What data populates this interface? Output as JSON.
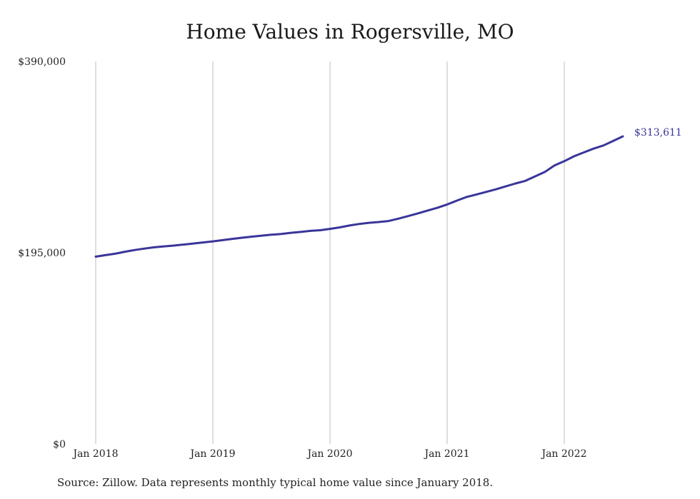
{
  "chart_data": {
    "type": "line",
    "title": "Home Values in Rogersville, MO",
    "xlabel": "",
    "ylabel": "",
    "x_ticks": [
      "Jan 2018",
      "Jan 2019",
      "Jan 2020",
      "Jan 2021",
      "Jan 2022"
    ],
    "y_ticks": [
      "$0",
      "$195,000",
      "$390,000"
    ],
    "y_tick_values": [
      0,
      195000,
      390000
    ],
    "ylim": [
      0,
      390000
    ],
    "grid": "vertical",
    "x": [
      "2018-01",
      "2018-02",
      "2018-03",
      "2018-04",
      "2018-05",
      "2018-06",
      "2018-07",
      "2018-08",
      "2018-09",
      "2018-10",
      "2018-11",
      "2018-12",
      "2019-01",
      "2019-02",
      "2019-03",
      "2019-04",
      "2019-05",
      "2019-06",
      "2019-07",
      "2019-08",
      "2019-09",
      "2019-10",
      "2019-11",
      "2019-12",
      "2020-01",
      "2020-02",
      "2020-03",
      "2020-04",
      "2020-05",
      "2020-06",
      "2020-07",
      "2020-08",
      "2020-09",
      "2020-10",
      "2020-11",
      "2020-12",
      "2021-01",
      "2021-02",
      "2021-03",
      "2021-04",
      "2021-05",
      "2021-06",
      "2021-07",
      "2021-08",
      "2021-09",
      "2021-10",
      "2021-11",
      "2021-12",
      "2022-01",
      "2022-02",
      "2022-03",
      "2022-04",
      "2022-05",
      "2022-06",
      "2022-07"
    ],
    "series": [
      {
        "values": [
          191000,
          192500,
          194000,
          196000,
          197800,
          199200,
          200500,
          201500,
          202300,
          203300,
          204400,
          205500,
          206600,
          207800,
          209100,
          210300,
          211400,
          212400,
          213300,
          214100,
          215300,
          216200,
          217300,
          217900,
          219300,
          220800,
          222700,
          224300,
          225500,
          226300,
          227300,
          229700,
          232300,
          235100,
          238000,
          240800,
          244200,
          248100,
          251800,
          254400,
          257000,
          259600,
          262600,
          265600,
          268200,
          272800,
          277300,
          284000,
          288300,
          293300,
          297200,
          301100,
          304300,
          308900,
          313611
        ]
      }
    ],
    "end_label": "$313,611",
    "line_color": "#3a3599"
  },
  "footer": {
    "source": "Source: Zillow. Data represents monthly typical home value since January 2018."
  }
}
